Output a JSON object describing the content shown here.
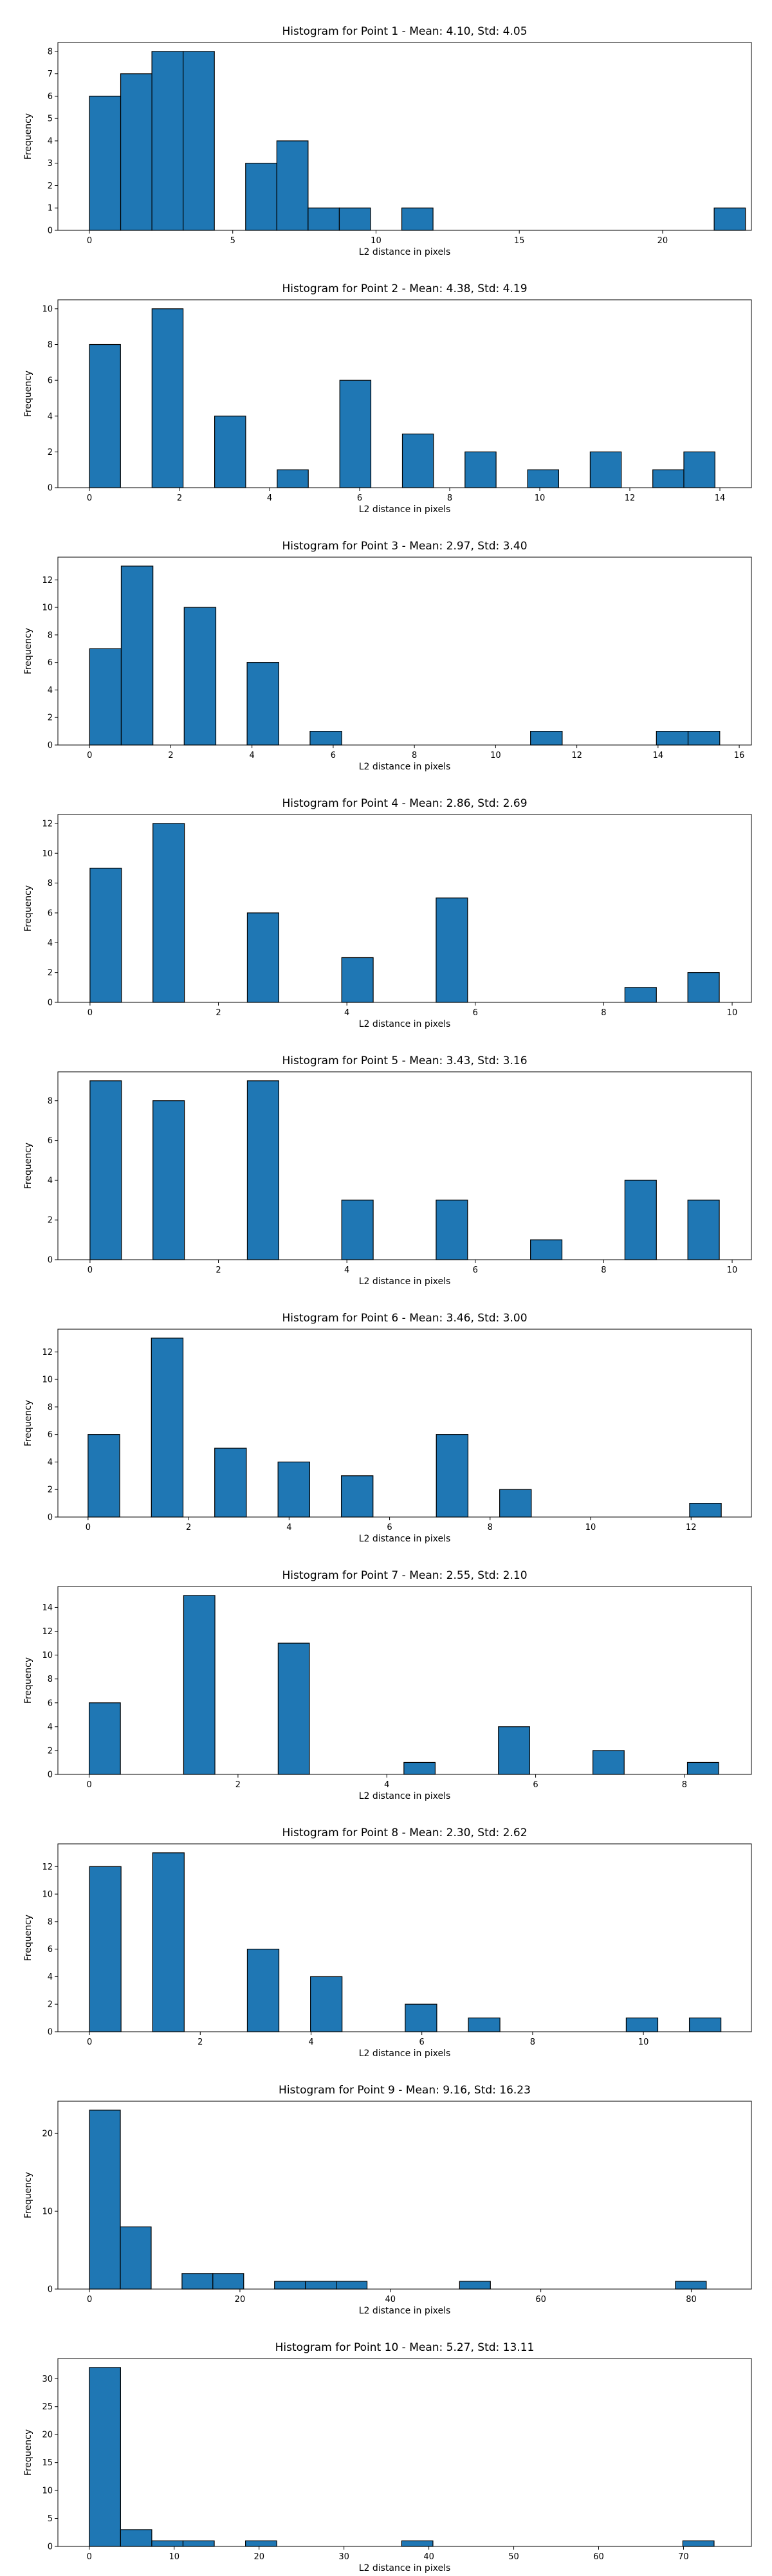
{
  "chart_data": [
    {
      "type": "bar",
      "title": "Histogram for Point 1 - Mean: 4.10, Std: 4.05",
      "xlabel": "L2 distance in pixels",
      "ylabel": "Frequency",
      "xlim": [
        -1.1,
        23.1
      ],
      "ylim": [
        0,
        8.4
      ],
      "xticks": [
        0,
        5,
        10,
        15,
        20
      ],
      "yticks": [
        0,
        1,
        2,
        3,
        4,
        5,
        6,
        7,
        8
      ],
      "bin_width": 1.09,
      "bins": [
        {
          "x": 0.0,
          "value": 6
        },
        {
          "x": 1.09,
          "value": 7
        },
        {
          "x": 2.18,
          "value": 8
        },
        {
          "x": 3.27,
          "value": 8
        },
        {
          "x": 5.45,
          "value": 3
        },
        {
          "x": 6.54,
          "value": 4
        },
        {
          "x": 7.63,
          "value": 1
        },
        {
          "x": 8.72,
          "value": 1
        },
        {
          "x": 10.9,
          "value": 1
        },
        {
          "x": 21.8,
          "value": 1
        }
      ],
      "color": "#1f77b4"
    },
    {
      "type": "bar",
      "title": "Histogram for Point 2 - Mean: 4.38, Std: 4.19",
      "xlabel": "L2 distance in pixels",
      "ylabel": "Frequency",
      "xlim": [
        -0.7,
        14.7
      ],
      "ylim": [
        0,
        10.5
      ],
      "xticks": [
        0,
        2,
        4,
        6,
        8,
        10,
        12,
        14
      ],
      "yticks": [
        0,
        2,
        4,
        6,
        8,
        10
      ],
      "bin_width": 0.69,
      "bins": [
        {
          "x": 0.0,
          "value": 8
        },
        {
          "x": 1.39,
          "value": 10
        },
        {
          "x": 2.78,
          "value": 4
        },
        {
          "x": 4.17,
          "value": 1
        },
        {
          "x": 5.56,
          "value": 6
        },
        {
          "x": 6.95,
          "value": 3
        },
        {
          "x": 8.34,
          "value": 2
        },
        {
          "x": 9.73,
          "value": 1
        },
        {
          "x": 11.12,
          "value": 2
        },
        {
          "x": 12.51,
          "value": 1
        },
        {
          "x": 13.2,
          "value": 2
        }
      ],
      "color": "#1f77b4"
    },
    {
      "type": "bar",
      "title": "Histogram for Point 3 - Mean: 2.97, Std: 3.40",
      "xlabel": "L2 distance in pixels",
      "ylabel": "Frequency",
      "xlim": [
        -0.78,
        16.3
      ],
      "ylim": [
        0,
        13.65
      ],
      "xticks": [
        0,
        2,
        4,
        6,
        8,
        10,
        12,
        14,
        16
      ],
      "yticks": [
        0,
        2,
        4,
        6,
        8,
        10,
        12
      ],
      "bin_width": 0.78,
      "bins": [
        {
          "x": 0.0,
          "value": 7
        },
        {
          "x": 0.78,
          "value": 13
        },
        {
          "x": 2.33,
          "value": 10
        },
        {
          "x": 3.88,
          "value": 6
        },
        {
          "x": 5.43,
          "value": 1
        },
        {
          "x": 10.86,
          "value": 1
        },
        {
          "x": 13.96,
          "value": 1
        },
        {
          "x": 14.74,
          "value": 1
        }
      ],
      "color": "#1f77b4"
    },
    {
      "type": "bar",
      "title": "Histogram for Point 4 - Mean: 2.86, Std: 2.69",
      "xlabel": "L2 distance in pixels",
      "ylabel": "Frequency",
      "xlim": [
        -0.5,
        10.3
      ],
      "ylim": [
        0,
        12.6
      ],
      "xticks": [
        0,
        2,
        4,
        6,
        8,
        10
      ],
      "yticks": [
        0,
        2,
        4,
        6,
        8,
        10,
        12
      ],
      "bin_width": 0.49,
      "bins": [
        {
          "x": 0.0,
          "value": 9
        },
        {
          "x": 0.98,
          "value": 12
        },
        {
          "x": 2.45,
          "value": 6
        },
        {
          "x": 3.92,
          "value": 3
        },
        {
          "x": 5.39,
          "value": 7
        },
        {
          "x": 8.33,
          "value": 1
        },
        {
          "x": 9.31,
          "value": 2
        }
      ],
      "color": "#1f77b4"
    },
    {
      "type": "bar",
      "title": "Histogram for Point 5 - Mean: 3.43, Std: 3.16",
      "xlabel": "L2 distance in pixels",
      "ylabel": "Frequency",
      "xlim": [
        -0.5,
        10.3
      ],
      "ylim": [
        0,
        9.45
      ],
      "xticks": [
        0,
        2,
        4,
        6,
        8,
        10
      ],
      "yticks": [
        0,
        2,
        4,
        6,
        8
      ],
      "bin_width": 0.49,
      "bins": [
        {
          "x": 0.0,
          "value": 9
        },
        {
          "x": 0.98,
          "value": 8
        },
        {
          "x": 2.45,
          "value": 9
        },
        {
          "x": 3.92,
          "value": 3
        },
        {
          "x": 5.39,
          "value": 3
        },
        {
          "x": 6.86,
          "value": 1
        },
        {
          "x": 8.33,
          "value": 4
        },
        {
          "x": 9.31,
          "value": 3
        }
      ],
      "color": "#1f77b4"
    },
    {
      "type": "bar",
      "title": "Histogram for Point 6 - Mean: 3.46, Std: 3.00",
      "xlabel": "L2 distance in pixels",
      "ylabel": "Frequency",
      "xlim": [
        -0.6,
        13.2
      ],
      "ylim": [
        0,
        13.65
      ],
      "xticks": [
        0,
        2,
        4,
        6,
        8,
        10,
        12
      ],
      "yticks": [
        0,
        2,
        4,
        6,
        8,
        10,
        12
      ],
      "bin_width": 0.63,
      "bins": [
        {
          "x": 0.0,
          "value": 6
        },
        {
          "x": 1.26,
          "value": 13
        },
        {
          "x": 2.52,
          "value": 5
        },
        {
          "x": 3.78,
          "value": 4
        },
        {
          "x": 5.04,
          "value": 3
        },
        {
          "x": 6.93,
          "value": 6
        },
        {
          "x": 8.19,
          "value": 2
        },
        {
          "x": 11.97,
          "value": 1
        }
      ],
      "color": "#1f77b4"
    },
    {
      "type": "bar",
      "title": "Histogram for Point 7 - Mean: 2.55, Std: 2.10",
      "xlabel": "L2 distance in pixels",
      "ylabel": "Frequency",
      "xlim": [
        -0.42,
        8.9
      ],
      "ylim": [
        0,
        15.75
      ],
      "xticks": [
        0,
        2,
        4,
        6,
        8
      ],
      "yticks": [
        0,
        2,
        4,
        6,
        8,
        10,
        12,
        14
      ],
      "bin_width": 0.42,
      "bins": [
        {
          "x": 0.0,
          "value": 6
        },
        {
          "x": 1.27,
          "value": 15
        },
        {
          "x": 2.54,
          "value": 11
        },
        {
          "x": 4.23,
          "value": 1
        },
        {
          "x": 5.5,
          "value": 4
        },
        {
          "x": 6.77,
          "value": 2
        },
        {
          "x": 8.04,
          "value": 1
        }
      ],
      "color": "#1f77b4"
    },
    {
      "type": "bar",
      "title": "Histogram for Point 8 - Mean: 2.30, Std: 2.62",
      "xlabel": "L2 distance in pixels",
      "ylabel": "Frequency",
      "xlim": [
        -0.57,
        11.95
      ],
      "ylim": [
        0,
        13.65
      ],
      "xticks": [
        0,
        2,
        4,
        6,
        8,
        10
      ],
      "yticks": [
        0,
        2,
        4,
        6,
        8,
        10,
        12
      ],
      "bin_width": 0.57,
      "bins": [
        {
          "x": 0.0,
          "value": 12
        },
        {
          "x": 1.14,
          "value": 13
        },
        {
          "x": 2.85,
          "value": 6
        },
        {
          "x": 3.99,
          "value": 4
        },
        {
          "x": 5.7,
          "value": 2
        },
        {
          "x": 6.84,
          "value": 1
        },
        {
          "x": 9.69,
          "value": 1
        },
        {
          "x": 10.83,
          "value": 1
        }
      ],
      "color": "#1f77b4"
    },
    {
      "type": "bar",
      "title": "Histogram for Point 9 - Mean: 9.16, Std: 16.23",
      "xlabel": "L2 distance in pixels",
      "ylabel": "Frequency",
      "xlim": [
        -4.2,
        88
      ],
      "ylim": [
        0,
        24.15
      ],
      "xticks": [
        0,
        20,
        40,
        60,
        80
      ],
      "yticks": [
        0,
        10,
        20
      ],
      "bin_width": 4.1,
      "bins": [
        {
          "x": 0.0,
          "value": 23
        },
        {
          "x": 4.1,
          "value": 8
        },
        {
          "x": 12.3,
          "value": 2
        },
        {
          "x": 16.4,
          "value": 2
        },
        {
          "x": 24.6,
          "value": 1
        },
        {
          "x": 28.7,
          "value": 1
        },
        {
          "x": 32.8,
          "value": 1
        },
        {
          "x": 49.2,
          "value": 1
        },
        {
          "x": 77.9,
          "value": 1
        }
      ],
      "color": "#1f77b4"
    },
    {
      "type": "bar",
      "title": "Histogram for Point 10 - Mean: 5.27, Std: 13.11",
      "xlabel": "L2 distance in pixels",
      "ylabel": "Frequency",
      "xlim": [
        -3.7,
        78
      ],
      "ylim": [
        0,
        33.6
      ],
      "xticks": [
        0,
        10,
        20,
        30,
        40,
        50,
        60,
        70
      ],
      "yticks": [
        0,
        5,
        10,
        15,
        20,
        25,
        30
      ],
      "bin_width": 3.68,
      "bins": [
        {
          "x": 0.0,
          "value": 32
        },
        {
          "x": 3.68,
          "value": 3
        },
        {
          "x": 7.36,
          "value": 1
        },
        {
          "x": 11.04,
          "value": 1
        },
        {
          "x": 18.4,
          "value": 1
        },
        {
          "x": 36.8,
          "value": 1
        },
        {
          "x": 69.92,
          "value": 1
        }
      ],
      "color": "#1f77b4"
    }
  ]
}
